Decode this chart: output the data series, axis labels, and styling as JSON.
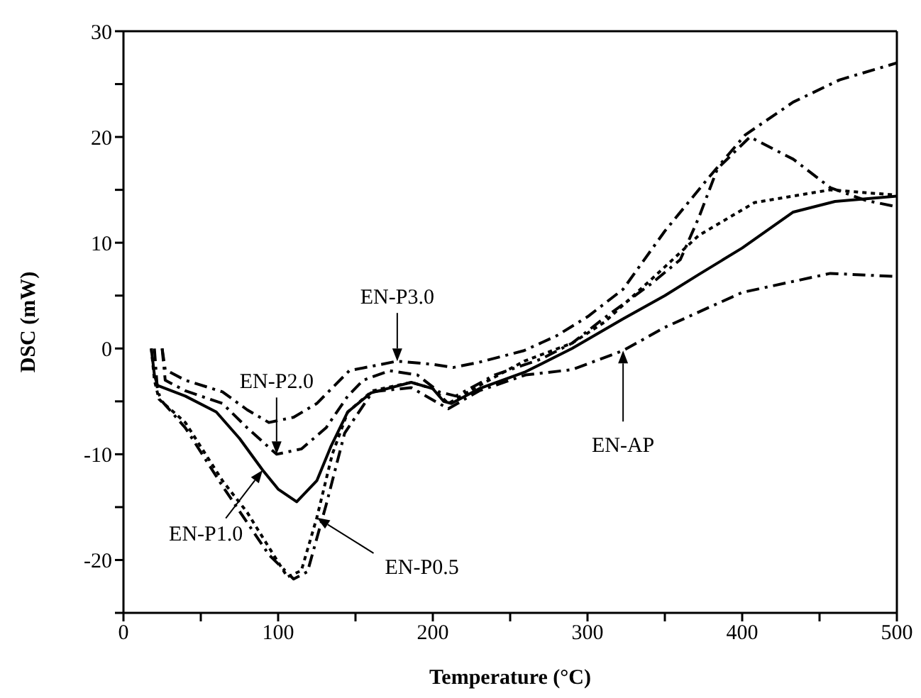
{
  "chart_data": {
    "type": "line",
    "xlabel": "Temperature (°C)",
    "ylabel": "DSC (mW)",
    "xlim": [
      0,
      500
    ],
    "ylim": [
      -25,
      30
    ],
    "xticks": [
      0,
      {
        "value": 50,
        "label": null
      },
      100,
      {
        "value": 150,
        "label": null
      },
      200,
      {
        "value": 250,
        "label": null
      },
      300,
      {
        "value": 350,
        "label": null
      },
      400,
      {
        "value": 450,
        "label": null
      },
      500
    ],
    "yticks": [
      {
        "value": -25,
        "label": null
      },
      -20,
      {
        "value": -15,
        "label": null
      },
      -10,
      {
        "value": -5,
        "label": null
      },
      0,
      {
        "value": 5,
        "label": null
      },
      10,
      {
        "value": 15,
        "label": null
      },
      20,
      {
        "value": 25,
        "label": null
      },
      30
    ],
    "marker": "none",
    "series": [
      {
        "color": "#000000",
        "line_style": "solid",
        "x": [
          18,
          20,
          22,
          40,
          60,
          75,
          90,
          100,
          112,
          125,
          134,
          145,
          160,
          186,
          200,
          207,
          212,
          230,
          260,
          290,
          323,
          350,
          372,
          400,
          433,
          460,
          500
        ],
        "values": [
          0,
          -2.5,
          -3.5,
          -4.5,
          -6,
          -8.5,
          -11.5,
          -13.3,
          -14.5,
          -12.5,
          -9.3,
          -6,
          -4.2,
          -3.2,
          -3.8,
          -5,
          -5.2,
          -3.8,
          -2.2,
          0,
          2.8,
          5,
          7,
          9.5,
          12.9,
          13.9,
          14.4
        ]
      },
      {
        "color": "#000000",
        "line_style": "dotted",
        "x": [
          18,
          20,
          23,
          40,
          64,
          80,
          94,
          106,
          115,
          125,
          135,
          145,
          161,
          186,
          200,
          210,
          230,
          259,
          290,
          311,
          341,
          372,
          408,
          457,
          500
        ],
        "values": [
          0,
          -3,
          -4.8,
          -7,
          -12.5,
          -15.5,
          -18.8,
          -21.6,
          -21,
          -16,
          -10,
          -6,
          -4,
          -3.2,
          -3.8,
          -5.2,
          -3.5,
          -1.2,
          0.5,
          2.5,
          6.5,
          10.7,
          13.8,
          15,
          14.5
        ]
      },
      {
        "color": "#000000",
        "line_style": "dashed",
        "x": [
          20,
          22,
          25,
          40,
          64,
          94,
          110,
          119,
          131,
          143,
          161,
          186,
          210,
          230,
          260,
          290,
          323,
          350,
          400,
          457,
          500
        ],
        "values": [
          0,
          -4,
          -5,
          -7.5,
          -13,
          -19.5,
          -21.8,
          -21.1,
          -14.8,
          -8,
          -4.1,
          -3.7,
          -5.7,
          -4,
          -2.5,
          -2,
          -0.2,
          2,
          5.3,
          7.1,
          6.8
        ]
      },
      {
        "color": "#000000",
        "line_style": "dashed",
        "x": [
          25,
          27,
          40,
          64,
          80,
          99,
          115,
          131,
          145,
          155,
          172,
          190,
          204,
          215,
          240,
          270,
          290,
          311,
          341,
          360,
          372,
          384,
          405,
          433,
          457,
          480,
          500
        ],
        "values": [
          0,
          -3,
          -4,
          -5.2,
          -7.5,
          -10,
          -9.5,
          -7.5,
          -4.5,
          -3,
          -2.1,
          -2.5,
          -4.1,
          -4.5,
          -2.5,
          -1,
          0.5,
          2.9,
          6.1,
          8.4,
          12.4,
          17,
          20,
          17.9,
          15.2,
          14,
          13.4
        ]
      },
      {
        "color": "#000000",
        "line_style": "dashed",
        "x": [
          25,
          27,
          40,
          64,
          80,
          94,
          110,
          125,
          146,
          177,
          200,
          213,
          230,
          259,
          280,
          300,
          323,
          350,
          378,
          402,
          433,
          463,
          500
        ],
        "values": [
          0,
          -2,
          -3,
          -4.1,
          -5.8,
          -7,
          -6.5,
          -5.2,
          -2.1,
          -1.2,
          -1.5,
          -1.8,
          -1.3,
          -0.2,
          1.2,
          3,
          5.6,
          11.1,
          16.1,
          20.2,
          23.3,
          25.4,
          27
        ]
      }
    ],
    "annotations": [
      {
        "text": "EN-P1.0",
        "x": 90,
        "y": -11.5
      },
      {
        "text": "EN-P0.5",
        "x": 125,
        "y": -16
      },
      {
        "text": "EN-AP",
        "x": 323,
        "y": -0.2
      },
      {
        "text": "EN-P2.0",
        "x": 99,
        "y": -10
      },
      {
        "text": "EN-P3.0",
        "x": 177,
        "y": -1.2
      }
    ]
  }
}
